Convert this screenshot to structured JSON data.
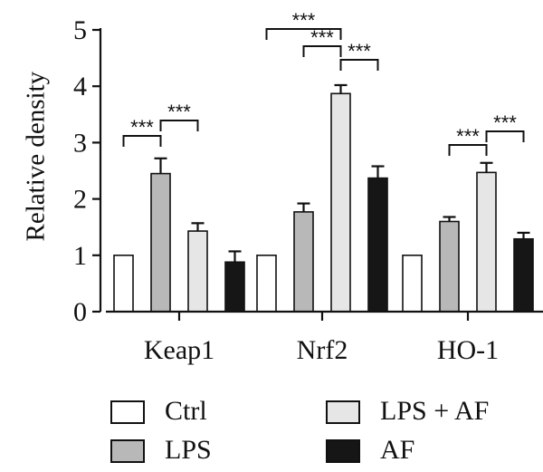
{
  "chart_data": {
    "type": "bar",
    "ylabel": "Relative density",
    "xlabel": "",
    "ylim": [
      0,
      5
    ],
    "yticks": [
      "0",
      "1",
      "2",
      "3",
      "4",
      "5"
    ],
    "categories": [
      "Keap1",
      "Nrf2",
      "HO-1"
    ],
    "series": [
      {
        "name": "Ctrl",
        "color": "#ffffff",
        "values": [
          1.0,
          1.0,
          1.0
        ],
        "errors": [
          0,
          0,
          0
        ]
      },
      {
        "name": "LPS",
        "color": "#b8b8b8",
        "values": [
          2.45,
          1.77,
          1.6
        ],
        "errors": [
          0.27,
          0.15,
          0.08
        ]
      },
      {
        "name": "LPS + AF",
        "color": "#e6e6e6",
        "values": [
          1.43,
          3.87,
          2.47
        ],
        "errors": [
          0.14,
          0.15,
          0.17
        ]
      },
      {
        "name": "AF",
        "color": "#161616",
        "values": [
          0.88,
          2.37,
          1.29
        ],
        "errors": [
          0.19,
          0.21,
          0.11
        ]
      }
    ],
    "significance": [
      {
        "category": 0,
        "from": 0,
        "to": 1,
        "label": "***"
      },
      {
        "category": 0,
        "from": 1,
        "to": 2,
        "label": "***"
      },
      {
        "category": 1,
        "from": 0,
        "to": 2,
        "label": "***"
      },
      {
        "category": 1,
        "from": 1,
        "to": 2,
        "label": "***"
      },
      {
        "category": 1,
        "from": 2,
        "to": 3,
        "label": "***"
      },
      {
        "category": 2,
        "from": 1,
        "to": 2,
        "label": "***"
      },
      {
        "category": 2,
        "from": 2,
        "to": 3,
        "label": "***"
      }
    ]
  },
  "legend": {
    "items": [
      {
        "label": "Ctrl",
        "color": "#ffffff"
      },
      {
        "label": "LPS",
        "color": "#b8b8b8"
      },
      {
        "label": "LPS + AF",
        "color": "#e6e6e6"
      },
      {
        "label": "AF",
        "color": "#161616"
      }
    ]
  }
}
